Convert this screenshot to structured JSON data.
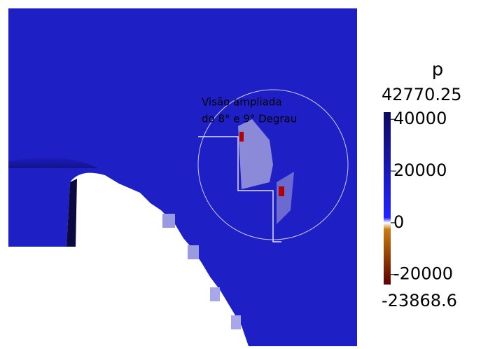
{
  "annotation": [
    "Visão ampliada",
    "do 8° e 9° Degrau"
  ],
  "colorbar": {
    "title": "p",
    "max": 42770.25,
    "min": -23868.6,
    "ticks": [
      40000,
      20000,
      0,
      -20000
    ]
  }
}
